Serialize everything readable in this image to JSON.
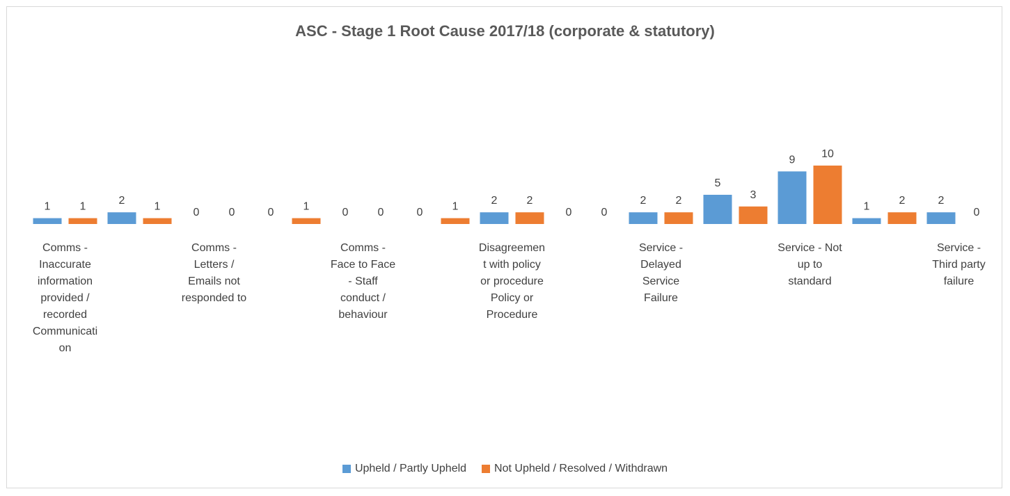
{
  "chart_data": {
    "type": "bar",
    "title": "ASC - Stage 1 Root Cause 2017/18 (corporate & statutory)",
    "categories": [
      "Comms - Inaccurate information provided / recorded Communication",
      null,
      "Comms - Letters / Emails not responded to",
      null,
      "Comms - Face to Face - Staff conduct / behaviour",
      null,
      "Disagreement with policy or procedure Policy or Procedure",
      null,
      "Service - Delayed Service Failure",
      null,
      "Service - Not up to standard",
      null,
      "Service - Third party failure"
    ],
    "series": [
      {
        "name": "Upheld / Partly Upheld",
        "color": "#5b9bd5",
        "values": [
          1,
          2,
          0,
          0,
          0,
          0,
          2,
          0,
          2,
          5,
          9,
          1,
          2
        ]
      },
      {
        "name": "Not Upheld / Resolved / Withdrawn",
        "color": "#ed7d31",
        "values": [
          1,
          1,
          0,
          1,
          0,
          1,
          2,
          0,
          2,
          3,
          10,
          2,
          0
        ]
      }
    ],
    "legend": "bottom"
  }
}
